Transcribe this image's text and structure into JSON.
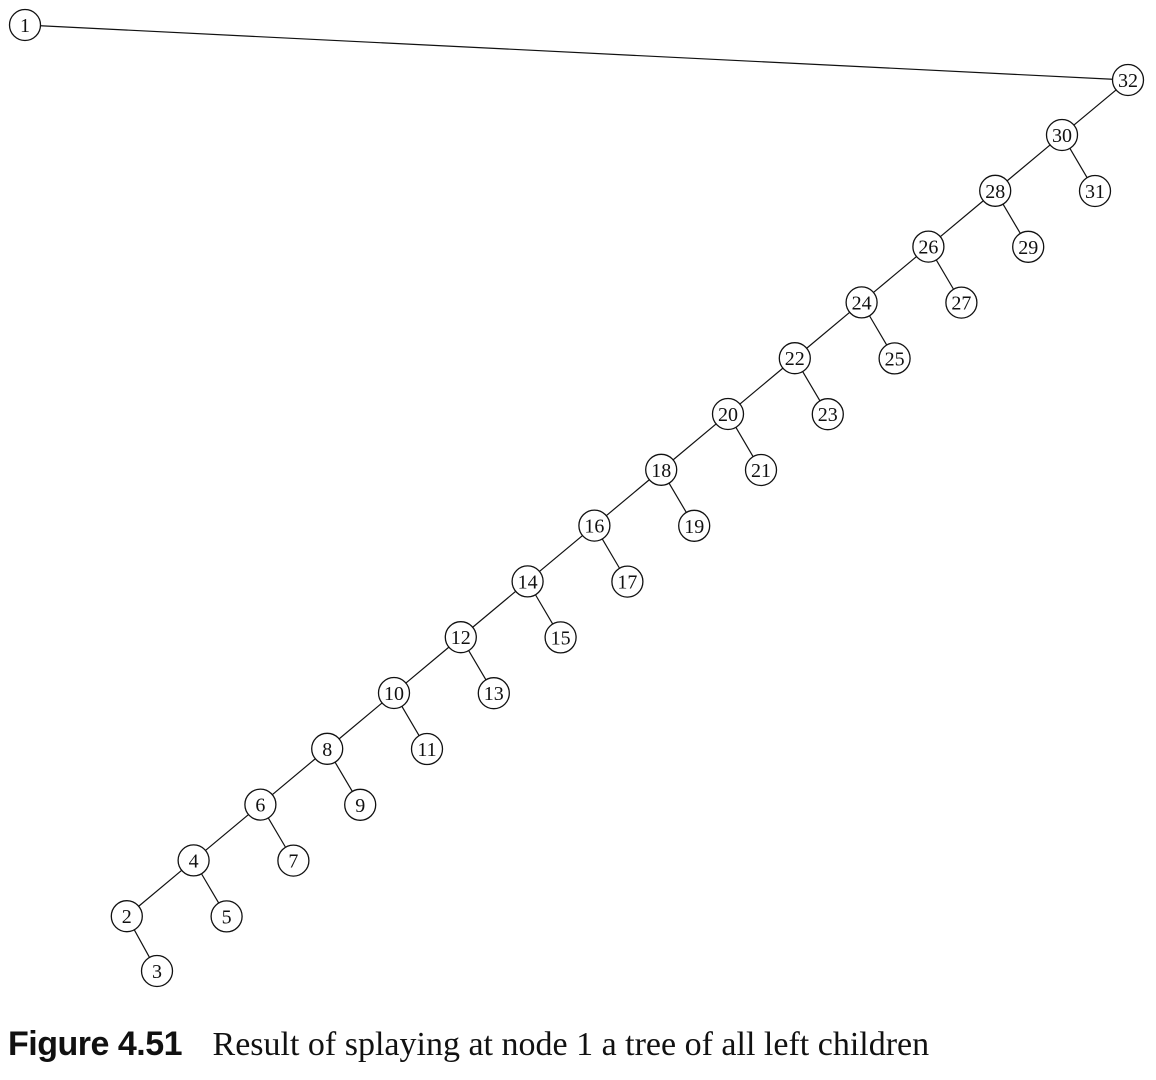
{
  "caption": {
    "label": "Figure 4.51",
    "text": "Result of splaying at node 1 a tree of all left children"
  },
  "tree": {
    "nodes": [
      "1",
      "2",
      "3",
      "4",
      "5",
      "6",
      "7",
      "8",
      "9",
      "10",
      "11",
      "12",
      "13",
      "14",
      "15",
      "16",
      "17",
      "18",
      "19",
      "20",
      "21",
      "22",
      "23",
      "24",
      "25",
      "26",
      "27",
      "28",
      "29",
      "30",
      "31",
      "32"
    ],
    "edges": [
      [
        "1",
        "32"
      ],
      [
        "32",
        "30"
      ],
      [
        "30",
        "28"
      ],
      [
        "30",
        "31"
      ],
      [
        "28",
        "26"
      ],
      [
        "28",
        "29"
      ],
      [
        "26",
        "24"
      ],
      [
        "26",
        "27"
      ],
      [
        "24",
        "22"
      ],
      [
        "24",
        "25"
      ],
      [
        "22",
        "20"
      ],
      [
        "22",
        "23"
      ],
      [
        "20",
        "18"
      ],
      [
        "20",
        "21"
      ],
      [
        "18",
        "16"
      ],
      [
        "18",
        "19"
      ],
      [
        "16",
        "14"
      ],
      [
        "16",
        "17"
      ],
      [
        "14",
        "12"
      ],
      [
        "14",
        "15"
      ],
      [
        "12",
        "10"
      ],
      [
        "12",
        "13"
      ],
      [
        "10",
        "8"
      ],
      [
        "10",
        "11"
      ],
      [
        "8",
        "6"
      ],
      [
        "8",
        "9"
      ],
      [
        "6",
        "4"
      ],
      [
        "6",
        "7"
      ],
      [
        "4",
        "2"
      ],
      [
        "4",
        "5"
      ],
      [
        "2",
        "3"
      ]
    ]
  }
}
